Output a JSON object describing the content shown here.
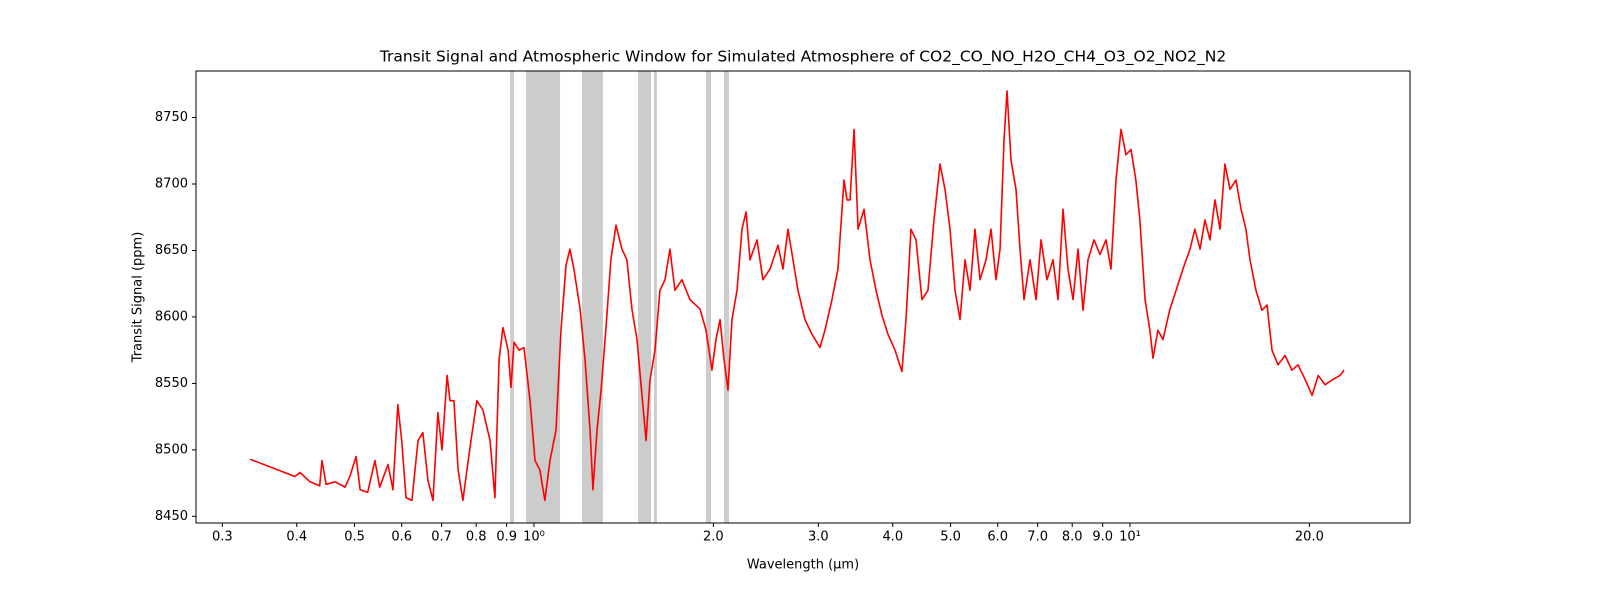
{
  "chart_data": {
    "type": "line",
    "title": "Transit Signal and Atmospheric Window for Simulated Atmosphere of CO2_CO_NO_H2O_CH4_O3_O2_NO2_N2",
    "x_label": "Wavelength (μm)",
    "y_label": "Transit Signal (ppm)",
    "x_scale": "log",
    "color": "#ff0000",
    "shaded_color": "#cccccc",
    "shaded_regions": [
      [
        0.912,
        0.926
      ],
      [
        0.97,
        1.106
      ],
      [
        1.204,
        1.305
      ],
      [
        1.495,
        1.572
      ],
      [
        1.59,
        1.608
      ],
      [
        1.944,
        1.982
      ],
      [
        2.084,
        2.125
      ]
    ],
    "x": [
      0.334,
      0.397,
      0.405,
      0.421,
      0.437,
      0.441,
      0.448,
      0.464,
      0.482,
      0.491,
      0.503,
      0.511,
      0.526,
      0.541,
      0.551,
      0.569,
      0.58,
      0.591,
      0.6,
      0.61,
      0.624,
      0.639,
      0.651,
      0.664,
      0.677,
      0.69,
      0.701,
      0.715,
      0.723,
      0.734,
      0.746,
      0.76,
      0.772,
      0.784,
      0.802,
      0.821,
      0.844,
      0.86,
      0.874,
      0.887,
      0.905,
      0.915,
      0.926,
      0.944,
      0.962,
      0.985,
      1.004,
      1.023,
      1.043,
      1.064,
      1.089,
      1.11,
      1.132,
      1.149,
      1.167,
      1.195,
      1.218,
      1.242,
      1.256,
      1.276,
      1.296,
      1.321,
      1.346,
      1.373,
      1.405,
      1.432,
      1.46,
      1.489,
      1.518,
      1.542,
      1.565,
      1.596,
      1.627,
      1.659,
      1.691,
      1.724,
      1.771,
      1.827,
      1.899,
      1.944,
      1.989,
      2.02,
      2.052,
      2.084,
      2.116,
      2.149,
      2.191,
      2.234,
      2.269,
      2.304,
      2.367,
      2.422,
      2.489,
      2.567,
      2.617,
      2.668,
      2.72,
      2.773,
      2.849,
      2.927,
      3.019,
      3.078,
      3.162,
      3.236,
      3.313,
      3.352,
      3.391,
      3.444,
      3.498,
      3.579,
      3.663,
      3.749,
      3.837,
      3.926,
      4.034,
      4.144,
      4.209,
      4.291,
      4.375,
      4.477,
      4.582,
      4.69,
      4.8,
      4.894,
      4.989,
      5.087,
      5.186,
      5.287,
      5.391,
      5.495,
      5.603,
      5.734,
      5.846,
      5.96,
      6.053,
      6.147,
      6.219,
      6.315,
      6.438,
      6.539,
      6.641,
      6.797,
      6.956,
      7.092,
      7.258,
      7.428,
      7.573,
      7.721,
      7.87,
      8.025,
      8.181,
      8.341,
      8.503,
      8.703,
      8.906,
      9.116,
      9.292,
      9.474,
      9.659,
      9.847,
      10.04,
      10.23,
      10.39,
      10.6,
      10.8,
      10.93,
      11.14,
      11.36,
      11.67,
      11.95,
      12.27,
      12.61,
      12.85,
      13.11,
      13.36,
      13.62,
      13.89,
      14.16,
      14.43,
      14.72,
      15.06,
      15.36,
      15.65,
      15.9,
      16.27,
      16.65,
      16.98,
      17.31,
      17.72,
      18.2,
      18.7,
      19.14,
      19.67,
      20.21,
      20.69,
      21.25,
      21.91,
      22.51,
      22.86
    ],
    "values": [
      8493,
      8480,
      8483,
      8476,
      8473,
      8492,
      8474,
      8476,
      8472,
      8480,
      8495,
      8470,
      8468,
      8492,
      8472,
      8489,
      8470,
      8534,
      8507,
      8464,
      8462,
      8507,
      8513,
      8477,
      8462,
      8528,
      8500,
      8556,
      8537,
      8537,
      8485,
      8462,
      8485,
      8507,
      8537,
      8530,
      8507,
      8464,
      8568,
      8592,
      8575,
      8547,
      8581,
      8575,
      8577,
      8537,
      8492,
      8485,
      8462,
      8492,
      8515,
      8590,
      8639,
      8651,
      8636,
      8606,
      8568,
      8515,
      8470,
      8515,
      8545,
      8592,
      8643,
      8669,
      8651,
      8643,
      8606,
      8583,
      8541,
      8507,
      8552,
      8575,
      8620,
      8628,
      8651,
      8620,
      8628,
      8613,
      8606,
      8590,
      8560,
      8583,
      8598,
      8568,
      8545,
      8598,
      8620,
      8666,
      8679,
      8643,
      8658,
      8628,
      8636,
      8654,
      8636,
      8666,
      8643,
      8620,
      8598,
      8587,
      8577,
      8590,
      8613,
      8636,
      8703,
      8688,
      8688,
      8741,
      8666,
      8681,
      8643,
      8620,
      8601,
      8587,
      8575,
      8559,
      8598,
      8666,
      8658,
      8613,
      8620,
      8673,
      8715,
      8696,
      8666,
      8620,
      8598,
      8643,
      8620,
      8666,
      8628,
      8643,
      8666,
      8628,
      8651,
      8733,
      8770,
      8718,
      8696,
      8651,
      8613,
      8643,
      8613,
      8658,
      8628,
      8643,
      8613,
      8681,
      8636,
      8613,
      8651,
      8605,
      8643,
      8658,
      8647,
      8658,
      8636,
      8703,
      8741,
      8722,
      8726,
      8703,
      8673,
      8613,
      8590,
      8569,
      8590,
      8583,
      8606,
      8620,
      8636,
      8651,
      8666,
      8651,
      8673,
      8658,
      8688,
      8666,
      8715,
      8696,
      8703,
      8681,
      8666,
      8643,
      8620,
      8605,
      8609,
      8575,
      8564,
      8571,
      8560,
      8564,
      8553,
      8541,
      8556,
      8549,
      8553,
      8556,
      8560
    ],
    "xlim": [
      0.271,
      29.5
    ],
    "ylim": [
      8445,
      8785
    ],
    "xticks": [
      0.3,
      0.4,
      0.5,
      0.6,
      0.7,
      0.8,
      0.9,
      {
        "value": 1,
        "label": "10⁰"
      },
      {
        "value": 2,
        "label": "2.0"
      },
      {
        "value": 3,
        "label": "3.0"
      },
      {
        "value": 4,
        "label": "4.0"
      },
      {
        "value": 5,
        "label": "5.0"
      },
      {
        "value": 6,
        "label": "6.0"
      },
      {
        "value": 7,
        "label": "7.0"
      },
      {
        "value": 8,
        "label": "8.0"
      },
      {
        "value": 9,
        "label": "9.0"
      },
      {
        "value": 10,
        "label": "10¹"
      },
      {
        "value": 20,
        "label": "20.0"
      }
    ],
    "yticks": [
      8450,
      8500,
      8550,
      8600,
      8650,
      8700,
      8750
    ]
  }
}
